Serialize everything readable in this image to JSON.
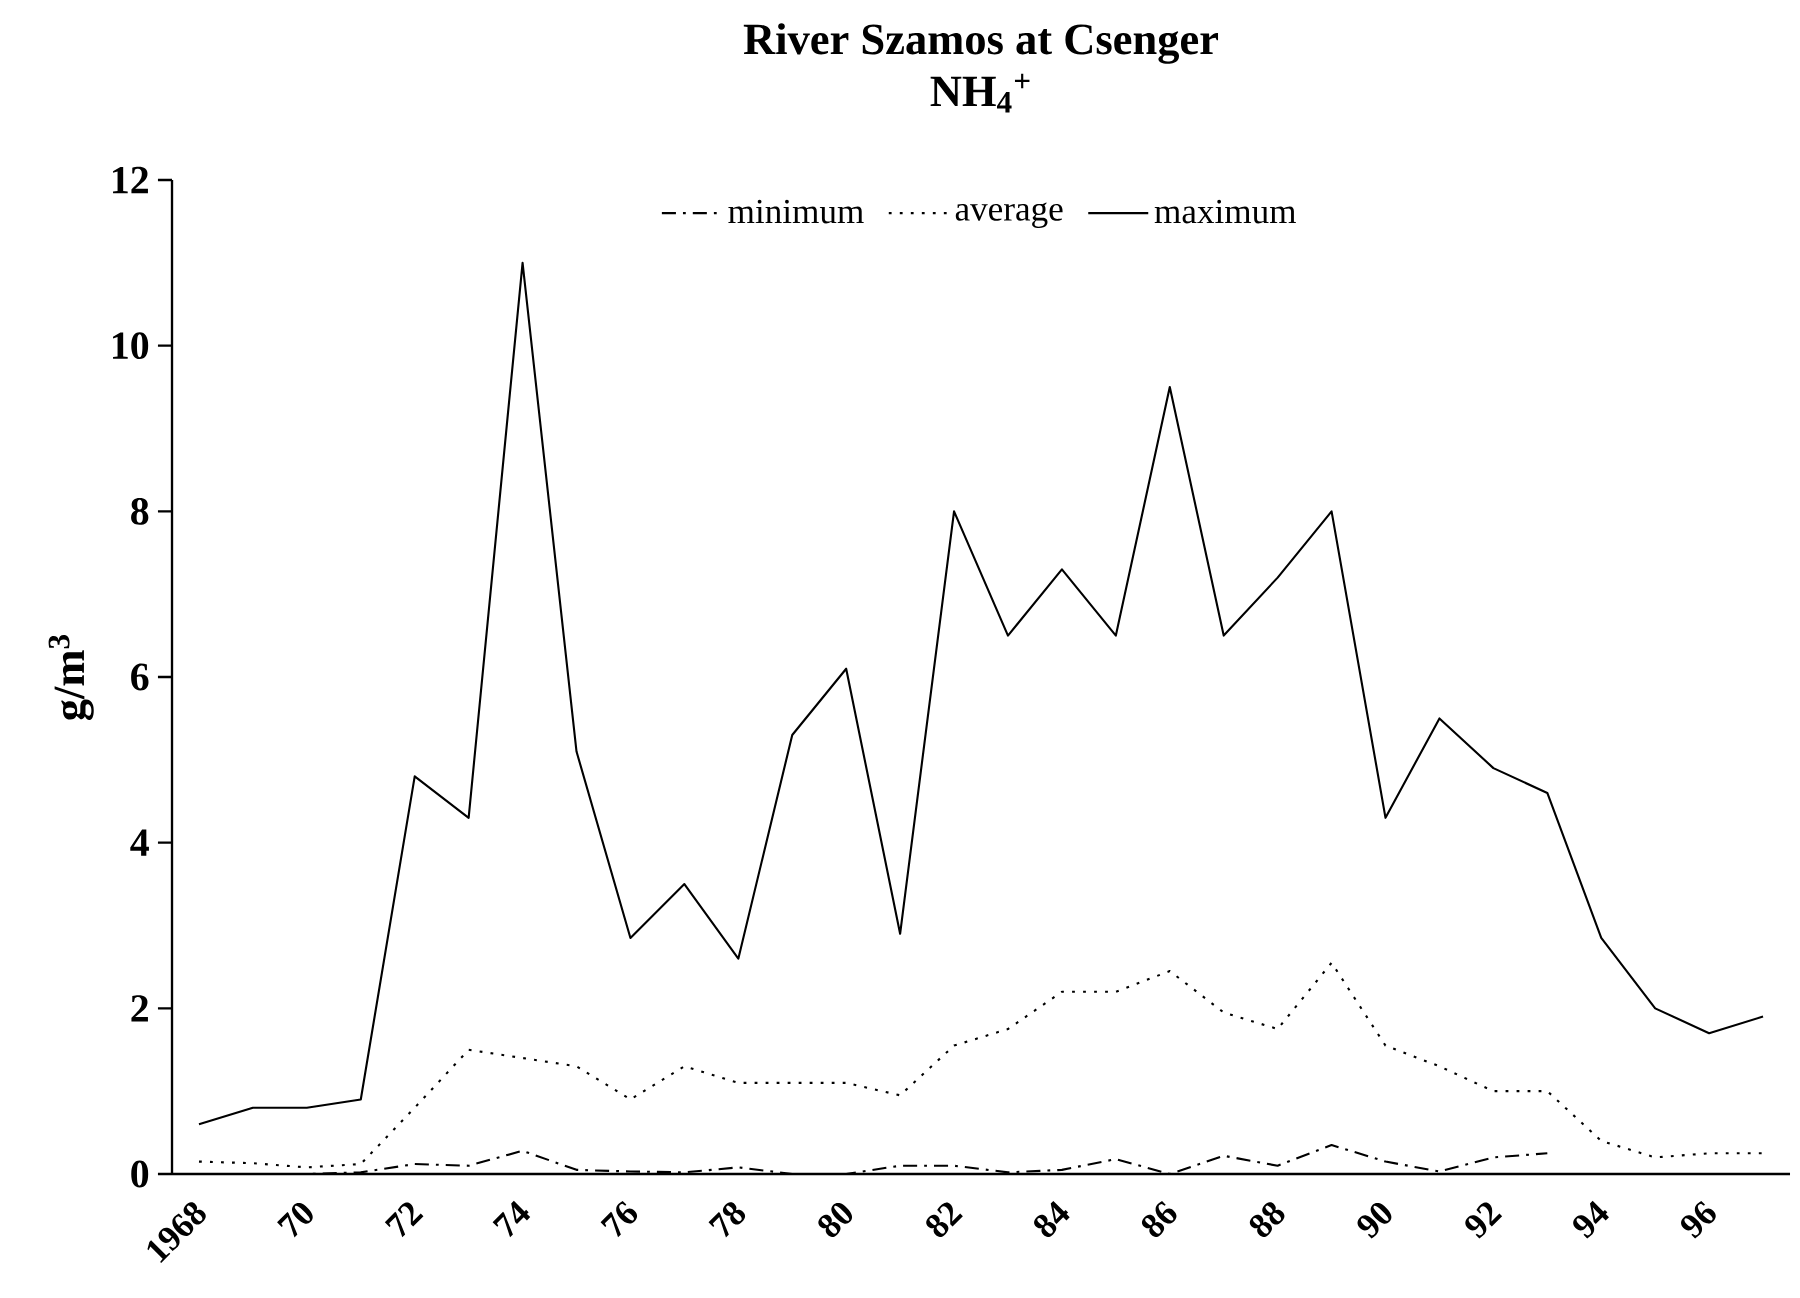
{
  "chart_data": {
    "type": "line",
    "title": "River Szamos at Csenger",
    "subtitle": "NH$_{4}$$^{+}$",
    "ylabel": "g/m$^{3}$",
    "categories": [
      "1968",
      null,
      "70",
      null,
      "72",
      null,
      "74",
      null,
      "76",
      null,
      "78",
      null,
      "80",
      null,
      "82",
      null,
      "84",
      null,
      "86",
      null,
      "88",
      null,
      "90",
      null,
      "92",
      null,
      "94",
      null,
      "96",
      null
    ],
    "series": [
      {
        "name": "minimum",
        "color": "#000000",
        "line_style": "dashdot",
        "values": [
          0,
          0,
          0,
          0.02,
          0.12,
          0.1,
          0.28,
          0.05,
          0.03,
          0.02,
          0.08,
          0,
          0,
          0.1,
          0.1,
          0.02,
          0.05,
          0.18,
          0,
          0.22,
          0.1,
          0.35,
          0.15,
          0.03,
          0.2,
          0.25,
          null,
          null,
          null,
          null
        ]
      },
      {
        "name": "average",
        "color": "#000000",
        "line_style": "dotted",
        "values": [
          0.15,
          0.13,
          0.08,
          0.12,
          0.8,
          1.5,
          1.4,
          1.3,
          0.9,
          1.3,
          1.1,
          1.1,
          1.1,
          0.95,
          1.55,
          1.75,
          2.2,
          2.2,
          2.45,
          1.95,
          1.75,
          2.55,
          1.55,
          1.3,
          1.0,
          1.0,
          0.4,
          0.2,
          0.25,
          0.25
        ]
      },
      {
        "name": "maximum",
        "color": "#000000",
        "line_style": "solid",
        "values": [
          0.6,
          0.8,
          0.8,
          0.9,
          4.8,
          4.3,
          11.0,
          5.1,
          2.85,
          3.5,
          2.6,
          5.3,
          6.1,
          2.9,
          8.0,
          6.5,
          7.3,
          6.5,
          9.5,
          6.5,
          7.2,
          8.0,
          4.3,
          5.5,
          4.9,
          4.6,
          2.85,
          2.0,
          1.7,
          1.9
        ]
      }
    ],
    "ylim": [
      0,
      12
    ],
    "yticks": [
      0,
      2,
      4,
      6,
      8,
      10,
      12
    ],
    "grid": false,
    "legend": "top",
    "marker": "none"
  }
}
